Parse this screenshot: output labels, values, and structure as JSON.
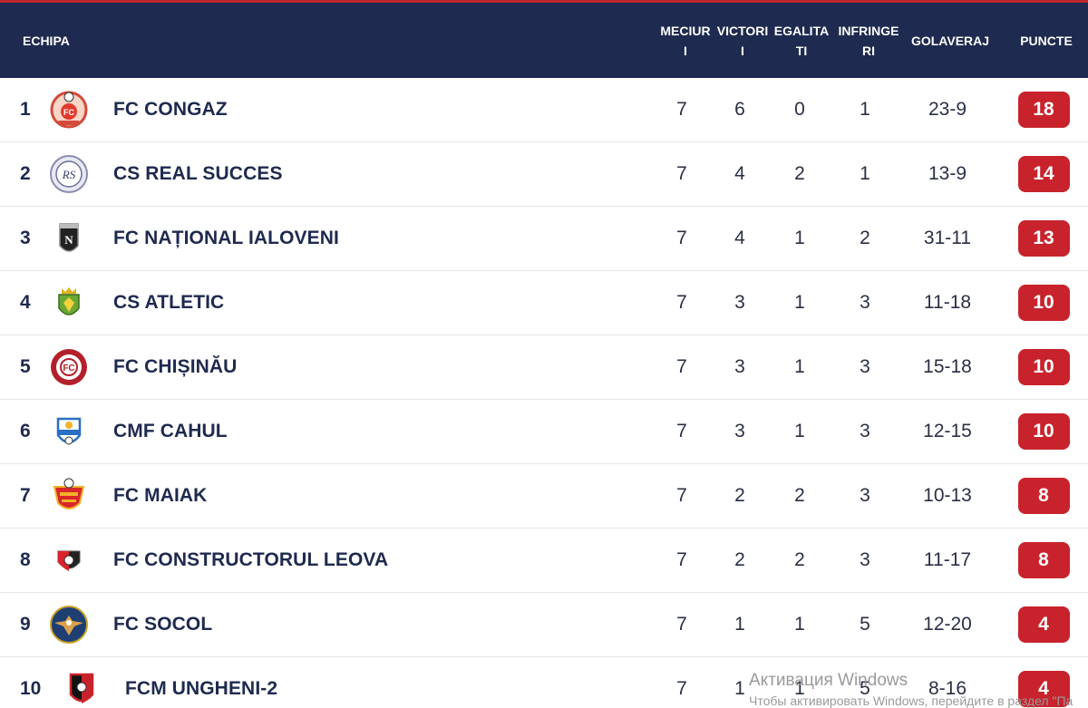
{
  "header": {
    "team": "ECHIPA",
    "mp": "MECIUR I",
    "w": "VICTORI I",
    "d": "EGALITA TI",
    "l": "INFRINGE RI",
    "gd": "GOLAVERAJ",
    "pts": "PUNCTE"
  },
  "rows": [
    {
      "pos": "1",
      "name": "FC CONGAZ",
      "mp": "7",
      "w": "6",
      "d": "0",
      "l": "1",
      "gd": "23-9",
      "pts": "18",
      "logo_icon": "fc-congaz-crest-icon"
    },
    {
      "pos": "2",
      "name": "CS REAL SUCCES",
      "mp": "7",
      "w": "4",
      "d": "2",
      "l": "1",
      "gd": "13-9",
      "pts": "14",
      "logo_icon": "cs-real-succes-crest-icon"
    },
    {
      "pos": "3",
      "name": "FC NAȚIONAL IALOVENI",
      "mp": "7",
      "w": "4",
      "d": "1",
      "l": "2",
      "gd": "31-11",
      "pts": "13",
      "logo_icon": "fc-national-ialoveni-crest-icon"
    },
    {
      "pos": "4",
      "name": "CS ATLETIC",
      "mp": "7",
      "w": "3",
      "d": "1",
      "l": "3",
      "gd": "11-18",
      "pts": "10",
      "logo_icon": "cs-atletic-crest-icon"
    },
    {
      "pos": "5",
      "name": "FC CHIȘINĂU",
      "mp": "7",
      "w": "3",
      "d": "1",
      "l": "3",
      "gd": "15-18",
      "pts": "10",
      "logo_icon": "fc-chisinau-crest-icon"
    },
    {
      "pos": "6",
      "name": "CMF CAHUL",
      "mp": "7",
      "w": "3",
      "d": "1",
      "l": "3",
      "gd": "12-15",
      "pts": "10",
      "logo_icon": "cmf-cahul-crest-icon"
    },
    {
      "pos": "7",
      "name": "FC MAIAK",
      "mp": "7",
      "w": "2",
      "d": "2",
      "l": "3",
      "gd": "10-13",
      "pts": "8",
      "logo_icon": "fc-maiak-crest-icon"
    },
    {
      "pos": "8",
      "name": "FC CONSTRUCTORUL LEOVA",
      "mp": "7",
      "w": "2",
      "d": "2",
      "l": "3",
      "gd": "11-17",
      "pts": "8",
      "logo_icon": "fc-constructorul-leova-crest-icon"
    },
    {
      "pos": "9",
      "name": "FC SOCOL",
      "mp": "7",
      "w": "1",
      "d": "1",
      "l": "5",
      "gd": "12-20",
      "pts": "4",
      "logo_icon": "fc-socol-crest-icon"
    },
    {
      "pos": "10",
      "name": "FCM UNGHENI-2",
      "mp": "7",
      "w": "1",
      "d": "1",
      "l": "5",
      "gd": "8-16",
      "pts": "4",
      "logo_icon": "fcm-ungheni-2-crest-icon"
    }
  ],
  "logo_text": {
    "congaz": "FC",
    "real_succes": "RS",
    "ialoveni": "N",
    "chisinau": "FC"
  },
  "watermark": {
    "line1": "Активация Windows",
    "line2": "Чтобы активировать Windows, перейдите в раздел \"Па"
  },
  "colors": {
    "header_bg": "#1e2a4f",
    "accent_stripe": "#c1272d",
    "points_badge": "#c8232c",
    "team_text": "#1e2a4f"
  }
}
